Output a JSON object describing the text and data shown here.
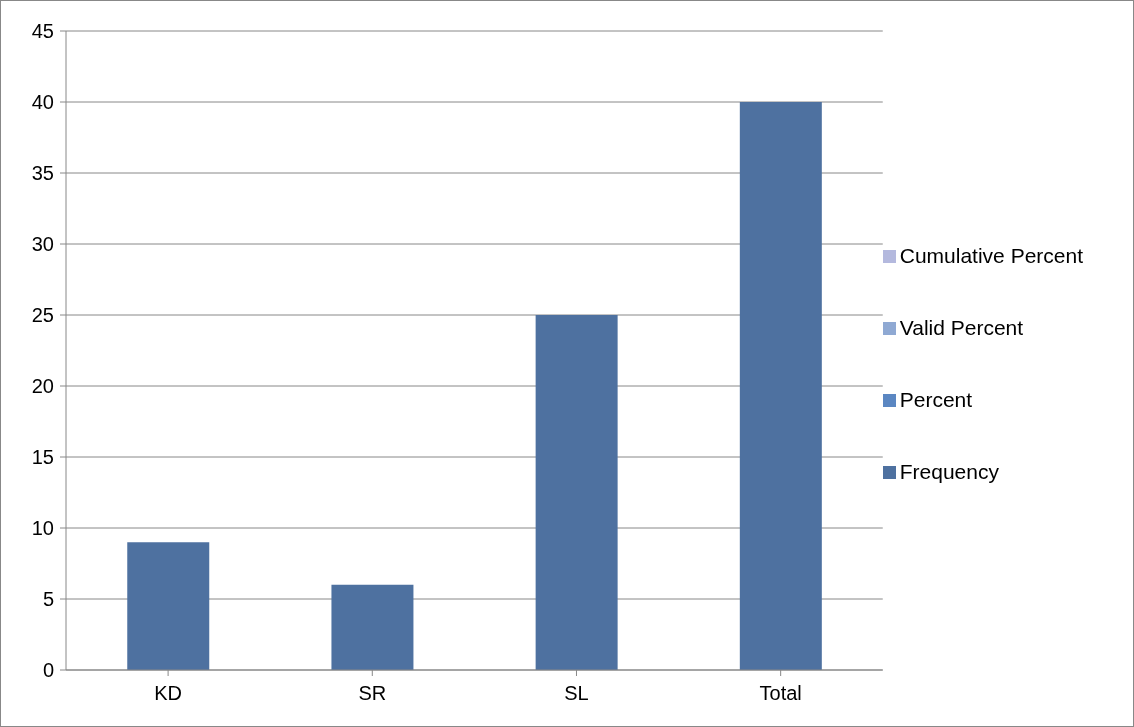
{
  "chart_data": {
    "type": "bar",
    "categories": [
      "KD",
      "SR",
      "SL",
      "Total"
    ],
    "series": [
      {
        "name": "Cumulative Percent",
        "color": "#b4b9de",
        "values": [
          null,
          null,
          null,
          null
        ]
      },
      {
        "name": "Valid Percent",
        "color": "#8fa9d3",
        "values": [
          null,
          null,
          null,
          null
        ]
      },
      {
        "name": "Percent",
        "color": "#5b87c2",
        "values": [
          null,
          null,
          null,
          null
        ]
      },
      {
        "name": "Frequency",
        "color": "#4e71a0",
        "values": [
          9,
          6,
          25,
          40
        ]
      }
    ],
    "ylim": [
      0,
      45
    ],
    "yticks": [
      0,
      5,
      10,
      15,
      20,
      25,
      30,
      35,
      40,
      45
    ],
    "grid": "y",
    "legend": "right"
  }
}
